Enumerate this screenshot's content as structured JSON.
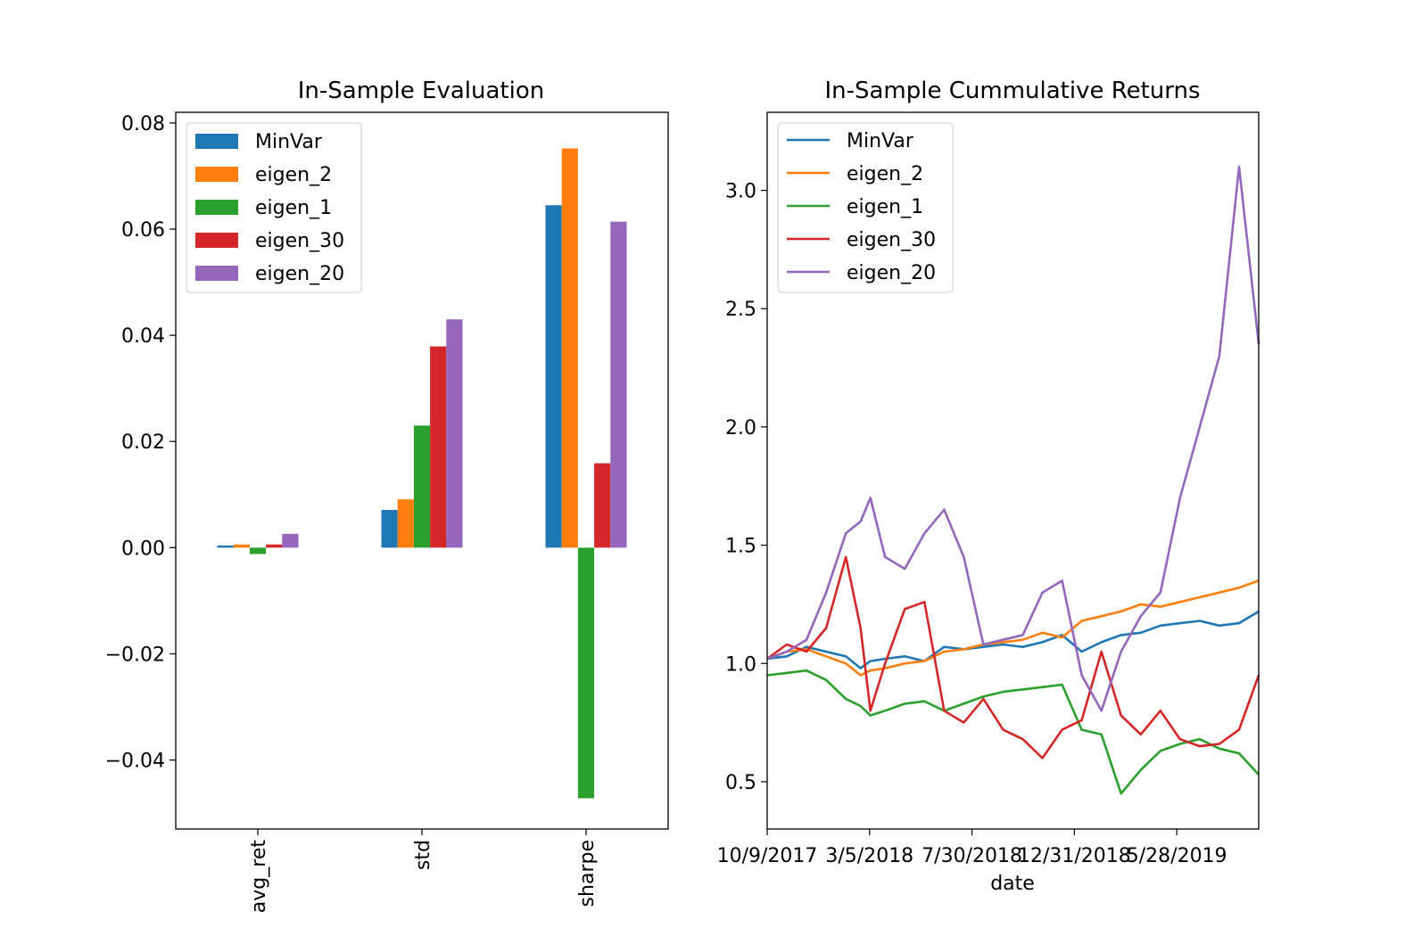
{
  "chart_data": [
    {
      "type": "bar",
      "title": "In-Sample Evaluation",
      "xlabel": "",
      "ylabel": "",
      "categories": [
        "avg_ret",
        "std",
        "sharpe"
      ],
      "ylim": [
        -0.053,
        0.082
      ],
      "yticks": [
        -0.04,
        -0.02,
        0.0,
        0.02,
        0.04,
        0.06,
        0.08
      ],
      "ytick_labels": [
        "−0.04",
        "−0.02",
        "0.00",
        "0.02",
        "0.04",
        "0.06",
        "0.08"
      ],
      "legend_position": "top-left",
      "series": [
        {
          "name": "MinVar",
          "color": "#1f77b4",
          "values": [
            0.0004,
            0.0071,
            0.0645
          ]
        },
        {
          "name": "eigen_2",
          "color": "#ff7f0e",
          "values": [
            0.0006,
            0.0091,
            0.0752
          ]
        },
        {
          "name": "eigen_1",
          "color": "#2ca02c",
          "values": [
            -0.0012,
            0.023,
            -0.0472
          ]
        },
        {
          "name": "eigen_30",
          "color": "#d62728",
          "values": [
            0.0006,
            0.0379,
            0.0159
          ]
        },
        {
          "name": "eigen_20",
          "color": "#9467bd",
          "values": [
            0.0026,
            0.043,
            0.0614
          ]
        }
      ]
    },
    {
      "type": "line",
      "title": "In-Sample Cummulative Returns",
      "xlabel": "date",
      "ylabel": "",
      "x_tick_labels": [
        "10/9/2017",
        "3/5/2018",
        "7/30/2018",
        "12/31/2018",
        "5/28/2019"
      ],
      "ylim": [
        0.3,
        3.33
      ],
      "yticks": [
        0.5,
        1.0,
        1.5,
        2.0,
        2.5,
        3.0
      ],
      "ytick_labels": [
        "0.5",
        "1.0",
        "1.5",
        "2.0",
        "2.5",
        "3.0"
      ],
      "x_frac": [
        0,
        0.04,
        0.08,
        0.12,
        0.16,
        0.19,
        0.21,
        0.24,
        0.28,
        0.32,
        0.36,
        0.4,
        0.44,
        0.48,
        0.52,
        0.56,
        0.6,
        0.64,
        0.68,
        0.72,
        0.76,
        0.8,
        0.84,
        0.88,
        0.92,
        0.96,
        1.0
      ],
      "legend_position": "top-left",
      "series": [
        {
          "name": "MinVar",
          "color": "#1f77b4",
          "values": [
            1.02,
            1.03,
            1.07,
            1.05,
            1.03,
            0.98,
            1.01,
            1.02,
            1.03,
            1.01,
            1.07,
            1.06,
            1.07,
            1.08,
            1.07,
            1.09,
            1.12,
            1.05,
            1.09,
            1.12,
            1.13,
            1.16,
            1.17,
            1.18,
            1.16,
            1.17,
            1.22
          ]
        },
        {
          "name": "eigen_2",
          "color": "#ff7f0e",
          "values": [
            1.02,
            1.05,
            1.06,
            1.03,
            1.0,
            0.95,
            0.97,
            0.98,
            1.0,
            1.01,
            1.05,
            1.06,
            1.08,
            1.09,
            1.1,
            1.13,
            1.11,
            1.18,
            1.2,
            1.22,
            1.25,
            1.24,
            1.26,
            1.28,
            1.3,
            1.32,
            1.35
          ]
        },
        {
          "name": "eigen_1",
          "color": "#2ca02c",
          "values": [
            0.95,
            0.96,
            0.97,
            0.93,
            0.85,
            0.82,
            0.78,
            0.8,
            0.83,
            0.84,
            0.8,
            0.83,
            0.86,
            0.88,
            0.89,
            0.9,
            0.91,
            0.72,
            0.7,
            0.45,
            0.55,
            0.63,
            0.66,
            0.68,
            0.64,
            0.62,
            0.53
          ]
        },
        {
          "name": "eigen_30",
          "color": "#d62728",
          "values": [
            1.02,
            1.08,
            1.05,
            1.15,
            1.45,
            1.15,
            0.8,
            1.0,
            1.23,
            1.26,
            0.8,
            0.75,
            0.85,
            0.72,
            0.68,
            0.6,
            0.72,
            0.76,
            1.05,
            0.78,
            0.7,
            0.8,
            0.68,
            0.65,
            0.66,
            0.72,
            0.95
          ]
        },
        {
          "name": "eigen_20",
          "color": "#9467bd",
          "values": [
            1.02,
            1.05,
            1.1,
            1.3,
            1.55,
            1.6,
            1.7,
            1.45,
            1.4,
            1.55,
            1.65,
            1.45,
            1.08,
            1.1,
            1.12,
            1.3,
            1.35,
            0.95,
            0.8,
            1.05,
            1.2,
            1.3,
            1.7,
            2.0,
            2.3,
            3.1,
            2.35
          ]
        }
      ]
    }
  ]
}
